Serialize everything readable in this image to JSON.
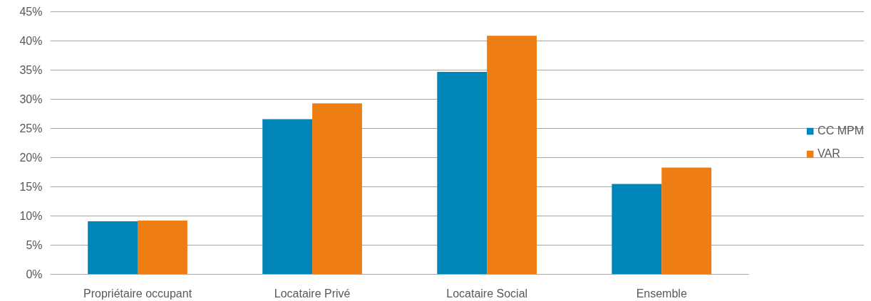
{
  "chart_data": {
    "type": "bar",
    "categories": [
      "Propriétaire occupant",
      "Locataire Privé",
      "Locataire Social",
      "Ensemble"
    ],
    "series": [
      {
        "name": "CC MPM",
        "color": "#0085b8",
        "values": [
          9.1,
          26.6,
          34.7,
          15.5
        ]
      },
      {
        "name": "VAR",
        "color": "#ee7d14",
        "values": [
          9.2,
          29.3,
          40.9,
          18.3
        ]
      }
    ],
    "ylim": [
      0,
      45
    ],
    "yticks": [
      {
        "value": 0,
        "label": "0%"
      },
      {
        "value": 5,
        "label": "5%"
      },
      {
        "value": 10,
        "label": "10%"
      },
      {
        "value": 15,
        "label": "15%"
      },
      {
        "value": 20,
        "label": "20%"
      },
      {
        "value": 25,
        "label": "25%"
      },
      {
        "value": 30,
        "label": "30%"
      },
      {
        "value": 35,
        "label": "35%"
      },
      {
        "value": 40,
        "label": "40%"
      },
      {
        "value": 45,
        "label": "45%"
      }
    ],
    "grid": "y",
    "legend": "right"
  }
}
